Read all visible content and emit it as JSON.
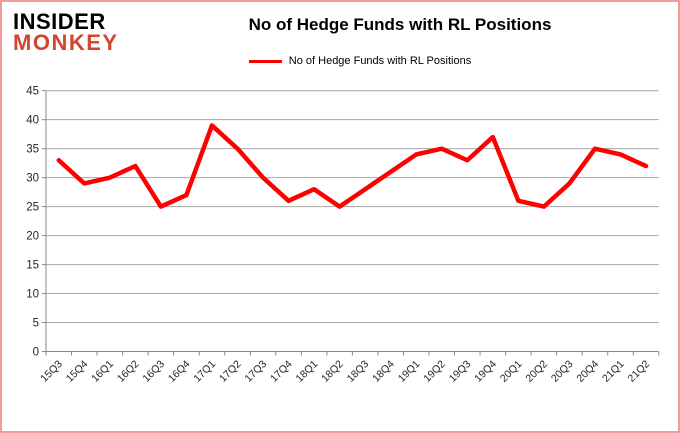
{
  "page": {
    "border_color": "#f19b9b",
    "background_color": "#ffffff"
  },
  "logo": {
    "line1": "INSIDER",
    "line2": "MONKEY",
    "line1_color": "#000000",
    "line2_color": "#d5442e"
  },
  "header": {
    "title": "No of Hedge Funds with RL Positions"
  },
  "legend": {
    "label": "No of Hedge Funds with RL Positions",
    "line_color": "#ff0000",
    "position": "top"
  },
  "chart_data": {
    "type": "line",
    "title": "No of Hedge Funds with RL Positions",
    "categories": [
      "15Q3",
      "15Q4",
      "16Q1",
      "16Q2",
      "16Q3",
      "16Q4",
      "17Q1",
      "17Q2",
      "17Q3",
      "17Q4",
      "18Q1",
      "18Q2",
      "18Q3",
      "18Q4",
      "19Q1",
      "19Q2",
      "19Q3",
      "19Q4",
      "20Q1",
      "20Q2",
      "20Q3",
      "20Q4",
      "21Q1",
      "21Q2"
    ],
    "series": [
      {
        "name": "No of Hedge Funds with RL Positions",
        "color": "#ff0000",
        "values": [
          33,
          29,
          30,
          32,
          25,
          27,
          39,
          35,
          30,
          26,
          28,
          25,
          28,
          31,
          34,
          35,
          33,
          37,
          26,
          25,
          29,
          35,
          34,
          32
        ]
      }
    ],
    "xlabel": "",
    "ylabel": "",
    "ylim": [
      0,
      45
    ],
    "ytick_step": 5,
    "grid": true,
    "grid_color": "#a6a6a6",
    "axis_color": "#898989",
    "tick_label_color": "#262626",
    "legend_position": "top"
  }
}
